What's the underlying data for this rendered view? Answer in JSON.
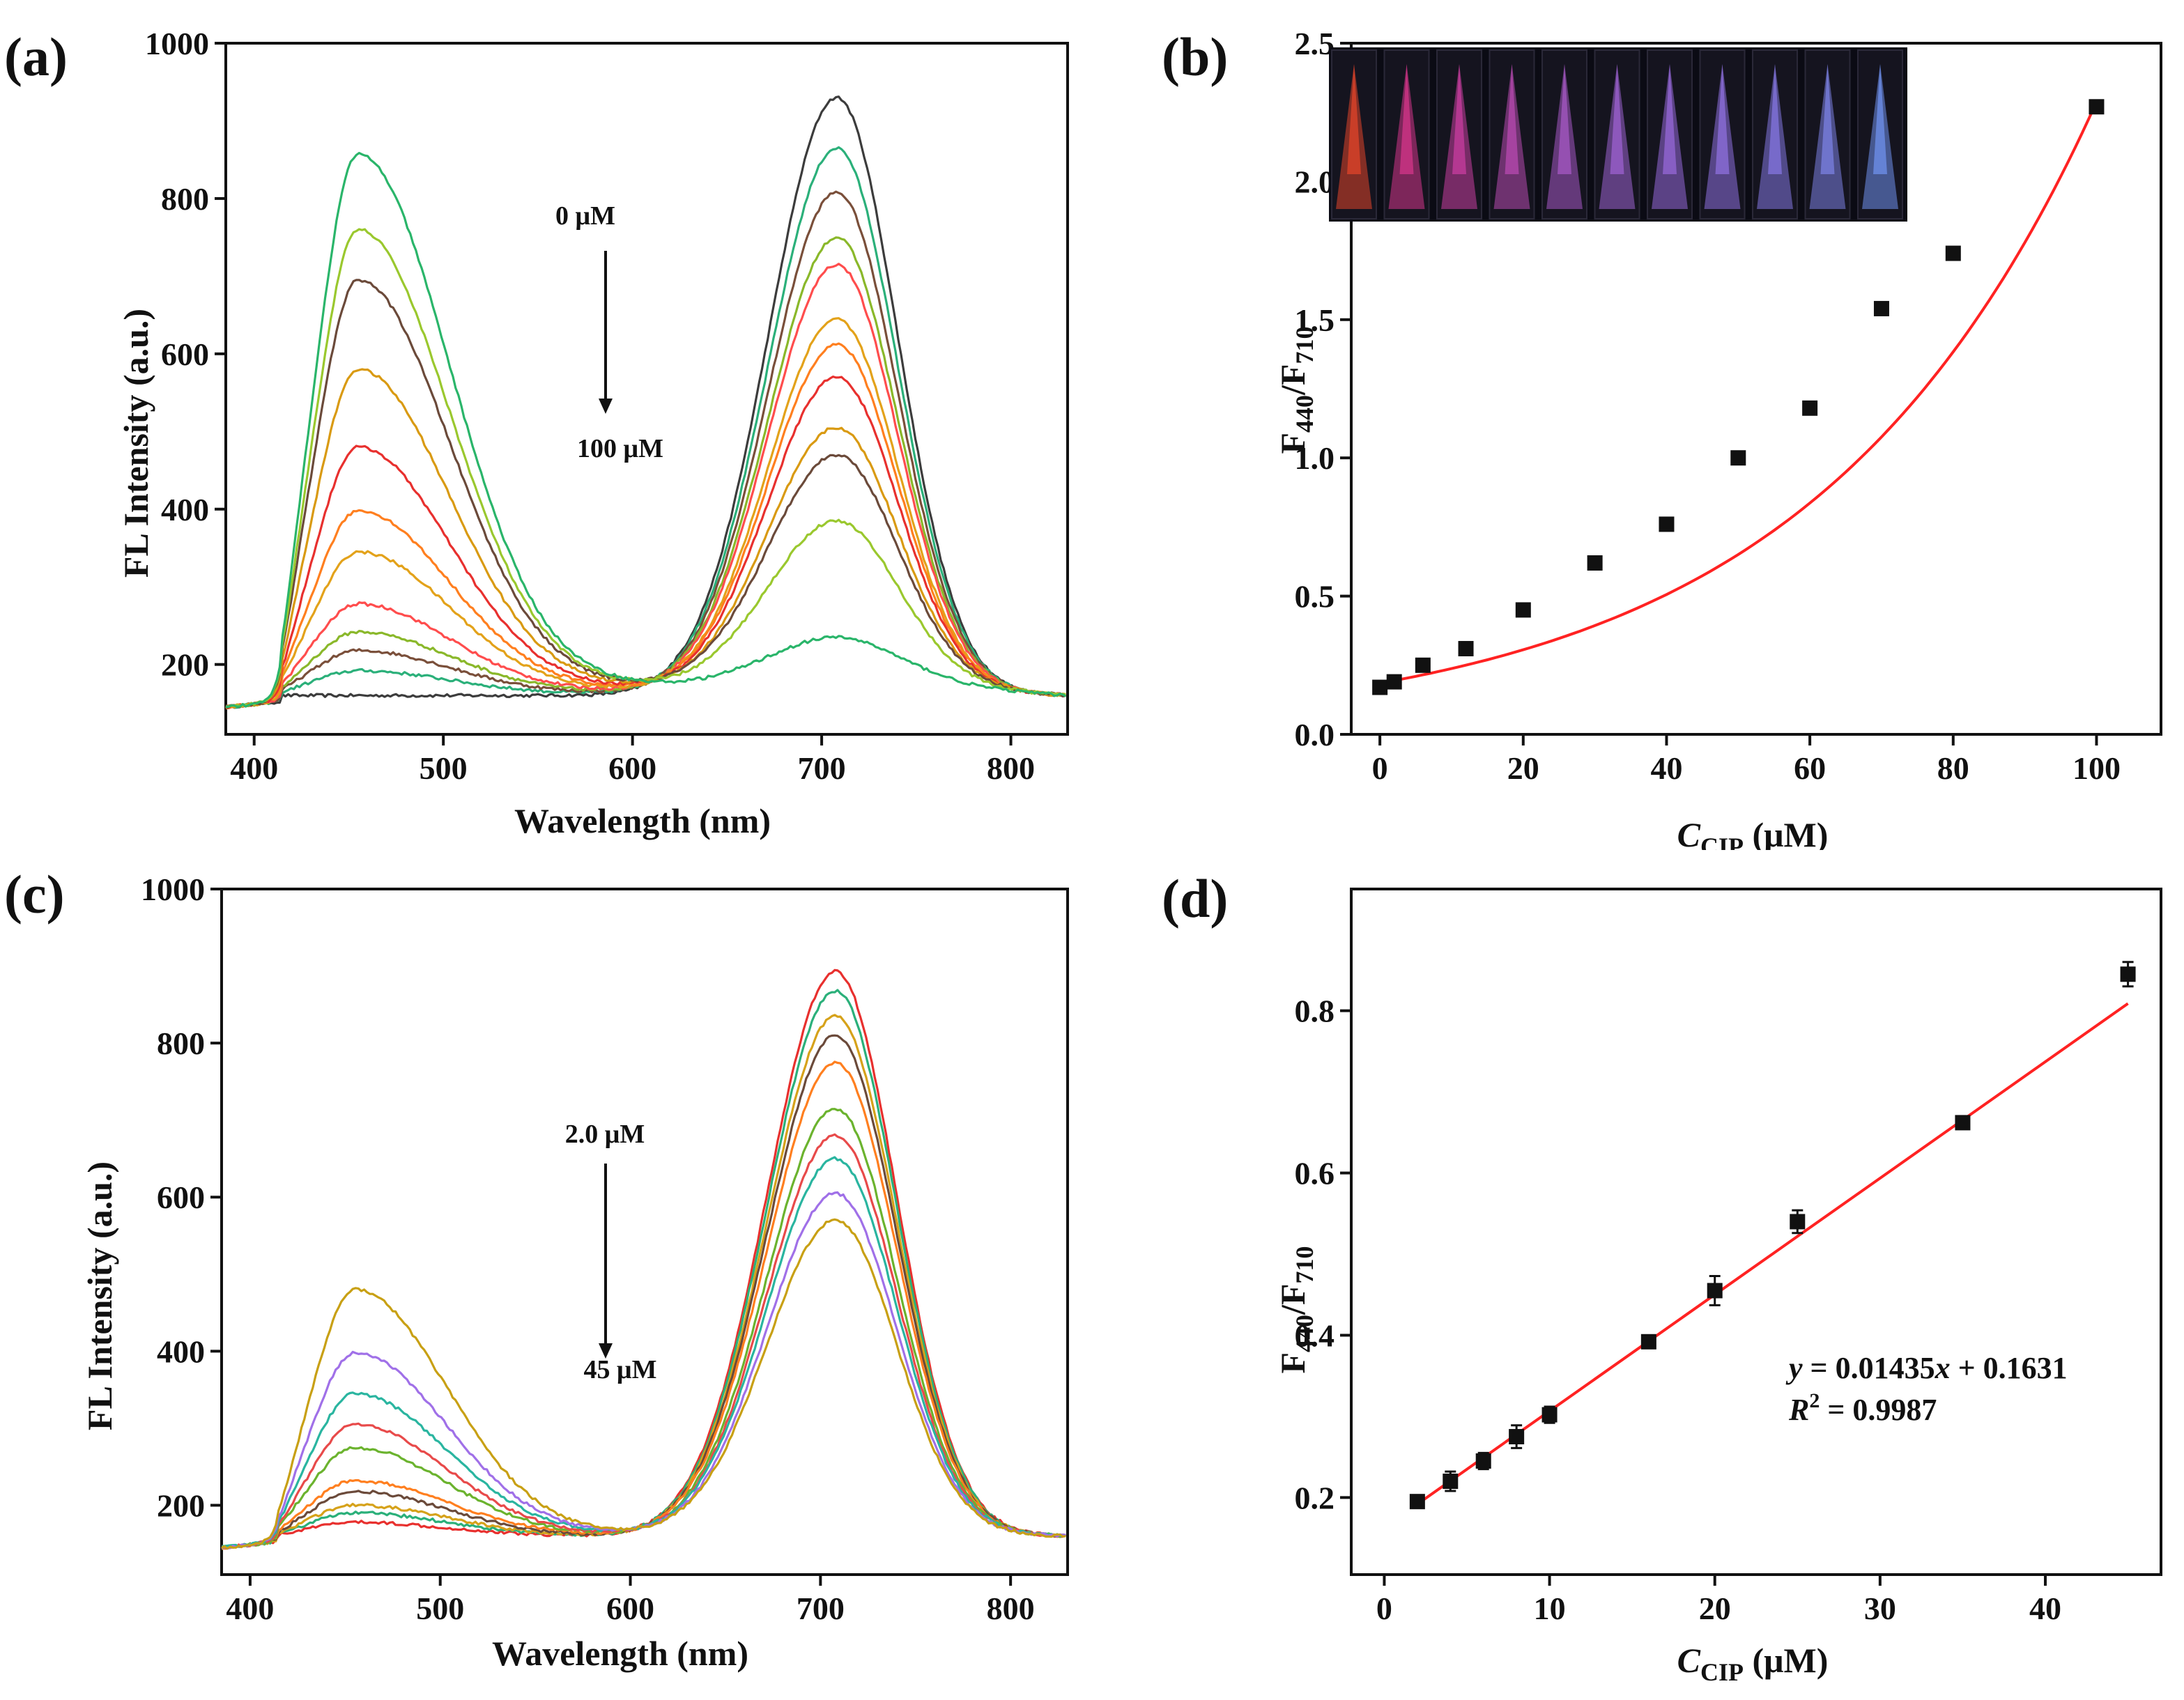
{
  "chart_data": [
    {
      "panel": "(a)",
      "type": "line",
      "xlabel": "Wavelength (nm)",
      "ylabel": "FL Intensity (a.u.)",
      "xlim": [
        385,
        830
      ],
      "ylim": [
        110,
        1000
      ],
      "xticks": [
        400,
        500,
        600,
        700,
        800
      ],
      "yticks": [
        200,
        400,
        600,
        800,
        1000
      ],
      "annotation_top": "0 μM",
      "annotation_bottom": "100 μM",
      "baseline": {
        "start": 145,
        "valley": 160,
        "end": 160
      },
      "series": [
        {
          "color": "#3c3c3c",
          "peak1": 160,
          "peak2": 930,
          "valley": 160
        },
        {
          "color": "#2bb07a",
          "peak1": 192,
          "peak2": 865,
          "valley": 162
        },
        {
          "color": "#7a4f3a",
          "peak1": 218,
          "peak2": 808,
          "valley": 163
        },
        {
          "color": "#8ab82a",
          "peak1": 242,
          "peak2": 750,
          "valley": 164
        },
        {
          "color": "#ff4d4d",
          "peak1": 278,
          "peak2": 715,
          "valley": 165
        },
        {
          "color": "#e3a21a",
          "peak1": 345,
          "peak2": 645,
          "valley": 166
        },
        {
          "color": "#ff7f1f",
          "peak1": 398,
          "peak2": 612,
          "valley": 167
        },
        {
          "color": "#e8302e",
          "peak1": 480,
          "peak2": 570,
          "valley": 168
        },
        {
          "color": "#d99a12",
          "peak1": 580,
          "peak2": 505,
          "valley": 170
        },
        {
          "color": "#6b4a3a",
          "peak1": 695,
          "peak2": 470,
          "valley": 171
        },
        {
          "color": "#9ac82e",
          "peak1": 760,
          "peak2": 385,
          "valley": 172
        },
        {
          "color": "#2ab56a",
          "peak1": 857,
          "peak2": 235,
          "valley": 173
        }
      ]
    },
    {
      "panel": "(b)",
      "type": "scatter",
      "xlabel_italic": "C",
      "xlabel_sub": "CIP",
      "xlabel_rest": " (μM)",
      "ylabel_main": "F",
      "ylabel_sub1": "440",
      "ylabel_mid": "/F",
      "ylabel_sub2": "710",
      "xlim": [
        -4,
        109
      ],
      "ylim": [
        0,
        2.5
      ],
      "xticks": [
        0,
        20,
        40,
        60,
        80,
        100
      ],
      "yticks": [
        0.0,
        0.5,
        1.0,
        1.5,
        2.0,
        2.5
      ],
      "ytick_labels": [
        "0.0",
        "0.5",
        "1.0",
        "1.5",
        "2.0",
        "2.5"
      ],
      "x": [
        0,
        2,
        6,
        12,
        20,
        30,
        40,
        50,
        60,
        70,
        80,
        100
      ],
      "y": [
        0.17,
        0.19,
        0.25,
        0.31,
        0.45,
        0.62,
        0.76,
        1.0,
        1.18,
        1.54,
        1.74,
        2.27
      ],
      "fit": {
        "type": "exponential",
        "a": 0.185,
        "b": 0.02515,
        "color": "#ff2222"
      },
      "inset_photo_vials": 11
    },
    {
      "panel": "(c)",
      "type": "line",
      "xlabel": "Wavelength (nm)",
      "ylabel": "FL Intensity (a.u.)",
      "xlim": [
        385,
        830
      ],
      "ylim": [
        110,
        1000
      ],
      "xticks": [
        400,
        500,
        600,
        700,
        800
      ],
      "yticks": [
        200,
        400,
        600,
        800,
        1000
      ],
      "annotation_top": "2.0 μM",
      "annotation_bottom": "45 μM",
      "baseline": {
        "start": 145,
        "valley": 160,
        "end": 160
      },
      "series": [
        {
          "color": "#e8302e",
          "peak1": 178,
          "peak2": 893,
          "valley": 160
        },
        {
          "color": "#2bb07a",
          "peak1": 190,
          "peak2": 868,
          "valley": 160
        },
        {
          "color": "#d6a21a",
          "peak1": 200,
          "peak2": 835,
          "valley": 160
        },
        {
          "color": "#6b4a3a",
          "peak1": 218,
          "peak2": 810,
          "valley": 160
        },
        {
          "color": "#ff7f1f",
          "peak1": 232,
          "peak2": 775,
          "valley": 161
        },
        {
          "color": "#6bb32e",
          "peak1": 275,
          "peak2": 715,
          "valley": 161
        },
        {
          "color": "#e84a4a",
          "peak1": 305,
          "peak2": 680,
          "valley": 161
        },
        {
          "color": "#2ab5a0",
          "peak1": 345,
          "peak2": 650,
          "valley": 162
        },
        {
          "color": "#a070e8",
          "peak1": 398,
          "peak2": 605,
          "valley": 162
        },
        {
          "color": "#c8a014",
          "peak1": 480,
          "peak2": 570,
          "valley": 162
        }
      ]
    },
    {
      "panel": "(d)",
      "type": "scatter",
      "xlabel_italic": "C",
      "xlabel_sub": "CIP",
      "xlabel_rest": " (μM)",
      "ylabel_main": "F",
      "ylabel_sub1": "440",
      "ylabel_mid": "/F",
      "ylabel_sub2": "710",
      "xlim": [
        -2,
        47
      ],
      "ylim": [
        0.105,
        0.95
      ],
      "xticks": [
        0,
        10,
        20,
        30,
        40
      ],
      "yticks": [
        0.2,
        0.4,
        0.6,
        0.8
      ],
      "ytick_labels": [
        "0.2",
        "0.4",
        "0.6",
        "0.8"
      ],
      "x": [
        2,
        4,
        6,
        8,
        10,
        16,
        20,
        25,
        35,
        45
      ],
      "y": [
        0.195,
        0.22,
        0.245,
        0.275,
        0.302,
        0.392,
        0.455,
        0.54,
        0.662,
        0.845
      ],
      "err": [
        0.006,
        0.012,
        0.01,
        0.014,
        0.01,
        0.006,
        0.018,
        0.014,
        0.005,
        0.015
      ],
      "fit": {
        "type": "linear",
        "slope": 0.01435,
        "intercept": 0.1631,
        "color": "#ff2222"
      },
      "equation_y": "y",
      "equation_rest": " = 0.01435",
      "equation_x": "x",
      "equation_tail": " + 0.1631",
      "r2_label": "R",
      "r2_value": " = 0.9987"
    }
  ]
}
